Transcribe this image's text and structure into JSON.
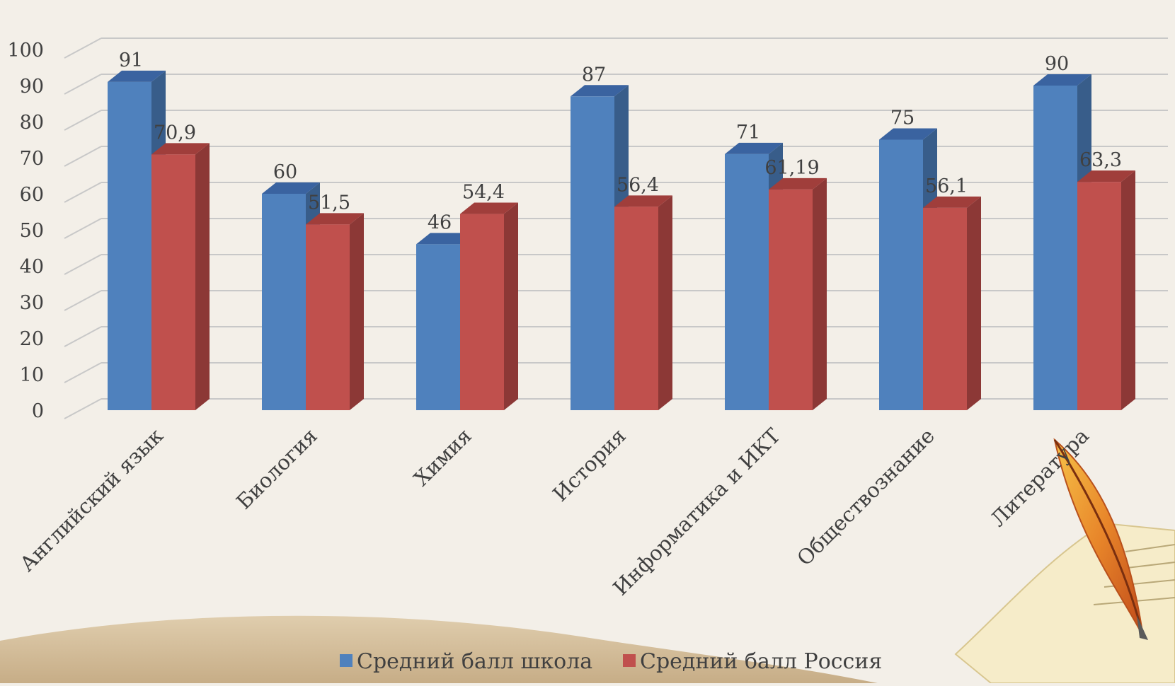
{
  "colors": {
    "background": "#f3efe8",
    "series_school": "#4f81bd",
    "series_school_side": "#385d8a",
    "series_school_top": "#3a63a0",
    "series_russia": "#c0504d",
    "series_russia_side": "#8c3836",
    "series_russia_top": "#a03e3b",
    "grid": "#c8c8c8",
    "text": "#404040"
  },
  "decoration": {
    "quill": "quill-pen-icon",
    "paper": "paper-sheet-icon"
  },
  "chart_data": {
    "type": "bar",
    "style": "3d-clustered-column",
    "categories": [
      "Английский язык",
      "Биология",
      "Химия",
      "История",
      "Информатика и ИКТ",
      "Обществознание",
      "Литература"
    ],
    "series": [
      {
        "name": "Средний балл школа",
        "values": [
          91,
          60,
          46,
          87,
          71,
          75,
          90
        ],
        "labels": [
          "91",
          "60",
          "46",
          "87",
          "71",
          "75",
          "90"
        ]
      },
      {
        "name": "Средний балл Россия",
        "values": [
          70.9,
          51.5,
          54.4,
          56.4,
          61.19,
          56.1,
          63.3
        ],
        "labels": [
          "70,9",
          "51,5",
          "54,4",
          "56,4",
          "61,19",
          "56,1",
          "63,3"
        ]
      }
    ],
    "ylim": [
      0,
      100
    ],
    "yticks": [
      0,
      10,
      20,
      30,
      40,
      50,
      60,
      70,
      80,
      90,
      100
    ],
    "grid": true,
    "legend": "bottom"
  }
}
